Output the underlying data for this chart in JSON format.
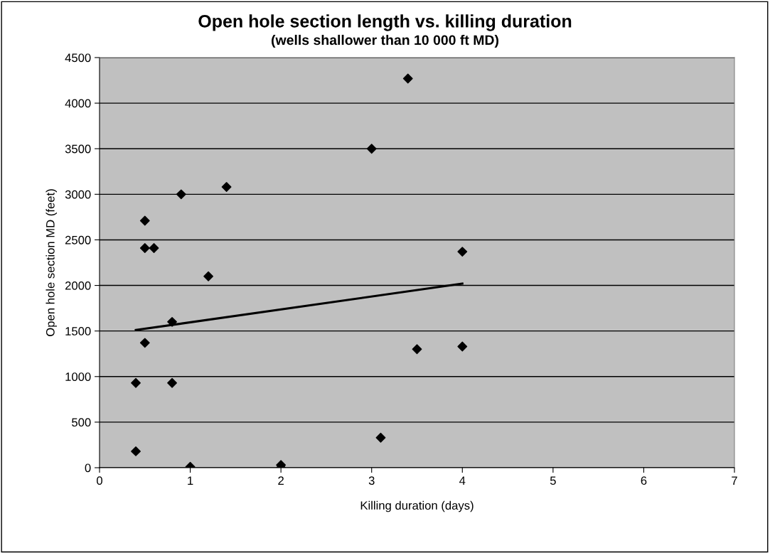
{
  "chart_data": {
    "type": "scatter",
    "title": "Open hole section length vs. killing duration",
    "subtitle": "(wells shallower than 10 000 ft MD)",
    "xlabel": "Killing duration (days)",
    "ylabel": "Open hole section MD (feet)",
    "series": [
      {
        "color": "#000000",
        "marker": "diamond",
        "x": [
          0.4,
          0.4,
          0.5,
          0.5,
          0.5,
          0.6,
          0.8,
          0.8,
          0.9,
          1.0,
          1.2,
          1.4,
          2,
          2,
          3,
          3.1,
          3.4,
          3.5,
          4,
          4
        ],
        "values": [
          180,
          930,
          1370,
          2410,
          2710,
          2410,
          1600,
          930,
          3000,
          10,
          2100,
          3080,
          30,
          0,
          3500,
          330,
          4270,
          1300,
          2370,
          1330
        ]
      },
      {
        "type": "line",
        "color": "#000000",
        "marker": "none",
        "x": [
          0.4,
          4
        ],
        "values": [
          1510,
          2020
        ]
      }
    ],
    "xlim": [
      0,
      7
    ],
    "xticks": [
      0,
      1,
      2,
      3,
      4,
      5,
      6,
      7
    ],
    "ylim": [
      0,
      4500
    ],
    "yticks": [
      0,
      500,
      1000,
      1500,
      2000,
      2500,
      3000,
      3500,
      4000,
      4500
    ],
    "grid": "y",
    "legend": false
  }
}
